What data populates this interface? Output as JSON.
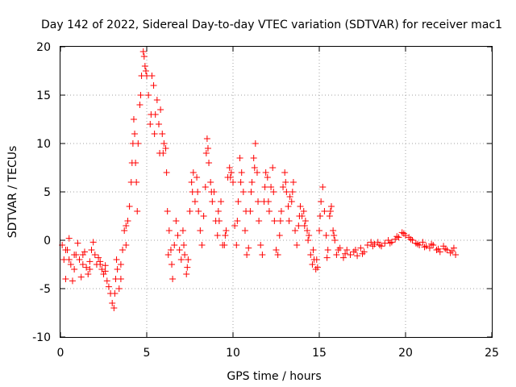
{
  "chart_data": {
    "type": "scatter",
    "title": "Day 142 of 2022, Sidereal Day-to-day VTEC variation (SDTVAR) for receiver mac1",
    "xlabel": "GPS time / hours",
    "ylabel": "SDTVAR / TECUs",
    "xlim": [
      0,
      25
    ],
    "ylim": [
      -10,
      20
    ],
    "xticks": [
      "0",
      "5",
      "10",
      "15",
      "20",
      "25"
    ],
    "yticks": [
      "-10",
      "-5",
      "0",
      "5",
      "10",
      "15",
      "20"
    ],
    "grid": true,
    "marker": "+",
    "series": [
      {
        "name": "SDTVAR",
        "color": "#ff0000",
        "points": [
          [
            0.1,
            -0.5
          ],
          [
            0.2,
            -2.0
          ],
          [
            0.3,
            -4.0
          ],
          [
            0.4,
            -1.0
          ],
          [
            0.5,
            0.2
          ],
          [
            0.6,
            -2.5
          ],
          [
            0.7,
            -4.2
          ],
          [
            0.8,
            -3.0
          ],
          [
            0.9,
            -1.5
          ],
          [
            1.0,
            -0.3
          ],
          [
            1.1,
            -2.0
          ],
          [
            1.2,
            -3.8
          ],
          [
            1.3,
            -2.5
          ],
          [
            1.4,
            -1.2
          ],
          [
            1.5,
            -2.8
          ],
          [
            1.6,
            -3.5
          ],
          [
            1.7,
            -2.2
          ],
          [
            1.8,
            -1.0
          ],
          [
            1.9,
            -0.2
          ],
          [
            2.0,
            -1.5
          ],
          [
            2.1,
            -2.5
          ],
          [
            2.2,
            -1.8
          ],
          [
            2.3,
            -2.2
          ],
          [
            2.4,
            -3.0
          ],
          [
            2.5,
            -3.5
          ],
          [
            2.6,
            -2.6
          ],
          [
            2.7,
            -4.2
          ],
          [
            2.8,
            -4.8
          ],
          [
            2.9,
            -5.5
          ],
          [
            3.0,
            -6.5
          ],
          [
            3.1,
            -7.0
          ],
          [
            3.15,
            -5.5
          ],
          [
            3.2,
            -4.0
          ],
          [
            3.3,
            -3.0
          ],
          [
            3.4,
            -5.0
          ],
          [
            3.5,
            -2.5
          ],
          [
            3.6,
            -1.0
          ],
          [
            3.7,
            1.0
          ],
          [
            3.8,
            -0.5
          ],
          [
            3.9,
            2.0
          ],
          [
            4.0,
            3.5
          ],
          [
            4.1,
            6.0
          ],
          [
            4.2,
            10.0
          ],
          [
            4.25,
            12.5
          ],
          [
            4.3,
            11.0
          ],
          [
            4.35,
            8.0
          ],
          [
            4.4,
            6.0
          ],
          [
            4.5,
            10.0
          ],
          [
            4.6,
            14.0
          ],
          [
            4.7,
            17.0
          ],
          [
            4.8,
            19.5
          ],
          [
            4.85,
            19.0
          ],
          [
            4.9,
            18.0
          ],
          [
            5.0,
            17.0
          ],
          [
            5.1,
            15.0
          ],
          [
            5.2,
            12.0
          ],
          [
            5.3,
            17.0
          ],
          [
            5.4,
            16.0
          ],
          [
            5.5,
            13.0
          ],
          [
            5.6,
            14.5
          ],
          [
            5.7,
            12.0
          ],
          [
            5.8,
            13.5
          ],
          [
            5.9,
            11.0
          ],
          [
            6.0,
            10.0
          ],
          [
            6.1,
            9.5
          ],
          [
            6.15,
            7.0
          ],
          [
            6.2,
            3.0
          ],
          [
            6.3,
            1.0
          ],
          [
            6.4,
            -1.0
          ],
          [
            6.5,
            -4.0
          ],
          [
            6.6,
            -0.5
          ],
          [
            6.7,
            2.0
          ],
          [
            6.8,
            0.5
          ],
          [
            6.9,
            -1.0
          ],
          [
            7.0,
            -2.0
          ],
          [
            7.1,
            1.0
          ],
          [
            7.2,
            -1.5
          ],
          [
            7.3,
            -3.5
          ],
          [
            7.4,
            -2.0
          ],
          [
            7.5,
            3.0
          ],
          [
            7.6,
            6.0
          ],
          [
            7.7,
            7.0
          ],
          [
            7.8,
            4.0
          ],
          [
            7.9,
            6.5
          ],
          [
            8.0,
            3.0
          ],
          [
            8.1,
            1.0
          ],
          [
            8.2,
            -0.5
          ],
          [
            8.3,
            2.5
          ],
          [
            8.4,
            5.5
          ],
          [
            8.5,
            10.5
          ],
          [
            8.55,
            9.5
          ],
          [
            8.6,
            8.0
          ],
          [
            8.7,
            6.0
          ],
          [
            8.8,
            4.0
          ],
          [
            8.9,
            5.0
          ],
          [
            9.0,
            2.0
          ],
          [
            9.1,
            0.5
          ],
          [
            9.2,
            2.0
          ],
          [
            9.3,
            4.0
          ],
          [
            9.4,
            -0.5
          ],
          [
            9.5,
            -0.5
          ],
          [
            9.6,
            1.0
          ],
          [
            9.7,
            6.5
          ],
          [
            9.8,
            7.5
          ],
          [
            9.9,
            7.0
          ],
          [
            10.0,
            6.0
          ],
          [
            10.1,
            1.5
          ],
          [
            10.2,
            -0.5
          ],
          [
            10.3,
            4.0
          ],
          [
            10.4,
            8.5
          ],
          [
            10.5,
            7.0
          ],
          [
            10.6,
            5.0
          ],
          [
            10.7,
            1.0
          ],
          [
            10.8,
            -1.5
          ],
          [
            10.9,
            -0.8
          ],
          [
            11.0,
            3.0
          ],
          [
            11.1,
            6.0
          ],
          [
            11.2,
            8.5
          ],
          [
            11.3,
            10.0
          ],
          [
            11.4,
            7.0
          ],
          [
            11.5,
            2.0
          ],
          [
            11.6,
            -0.5
          ],
          [
            11.7,
            -1.5
          ],
          [
            11.8,
            4.0
          ],
          [
            11.9,
            7.0
          ],
          [
            12.0,
            6.5
          ],
          [
            12.1,
            3.0
          ],
          [
            12.2,
            5.5
          ],
          [
            12.3,
            7.5
          ],
          [
            12.4,
            2.0
          ],
          [
            12.5,
            -1.0
          ],
          [
            12.6,
            -1.5
          ],
          [
            12.7,
            0.5
          ],
          [
            12.8,
            3.0
          ],
          [
            12.9,
            5.5
          ],
          [
            13.0,
            7.0
          ],
          [
            13.1,
            5.0
          ],
          [
            13.2,
            3.5
          ],
          [
            13.3,
            4.5
          ],
          [
            13.4,
            4.0
          ],
          [
            13.5,
            6.0
          ],
          [
            13.6,
            1.0
          ],
          [
            13.7,
            -0.5
          ],
          [
            13.8,
            1.5
          ],
          [
            13.9,
            3.5
          ],
          [
            14.0,
            2.5
          ],
          [
            14.1,
            3.0
          ],
          [
            14.2,
            2.0
          ],
          [
            14.3,
            1.0
          ],
          [
            14.4,
            0.5
          ],
          [
            14.5,
            -1.5
          ],
          [
            14.6,
            -2.5
          ],
          [
            14.7,
            -2.0
          ],
          [
            14.8,
            -3.0
          ],
          [
            14.9,
            -2.8
          ],
          [
            15.0,
            1.0
          ],
          [
            15.1,
            4.0
          ],
          [
            15.2,
            5.5
          ],
          [
            15.3,
            3.0
          ],
          [
            15.4,
            0.5
          ],
          [
            15.5,
            -1.0
          ],
          [
            15.6,
            2.5
          ],
          [
            15.7,
            3.5
          ],
          [
            15.8,
            1.0
          ],
          [
            15.9,
            0.0
          ],
          [
            16.0,
            -1.5
          ],
          [
            16.2,
            -0.8
          ],
          [
            16.4,
            -1.8
          ],
          [
            16.6,
            -1.0
          ],
          [
            16.8,
            -1.5
          ],
          [
            17.0,
            -1.2
          ],
          [
            17.2,
            -1.6
          ],
          [
            17.4,
            -0.8
          ],
          [
            17.6,
            -1.2
          ],
          [
            17.8,
            -0.5
          ],
          [
            18.0,
            -0.2
          ],
          [
            18.2,
            -0.4
          ],
          [
            18.4,
            -0.2
          ],
          [
            18.6,
            -0.6
          ],
          [
            18.8,
            -0.3
          ],
          [
            19.0,
            0.0
          ],
          [
            19.2,
            -0.2
          ],
          [
            19.4,
            0.1
          ],
          [
            19.6,
            0.3
          ],
          [
            19.8,
            0.8
          ],
          [
            20.0,
            0.5
          ],
          [
            20.2,
            0.3
          ],
          [
            20.4,
            0.0
          ],
          [
            20.6,
            -0.3
          ],
          [
            20.8,
            -0.5
          ],
          [
            21.0,
            -0.2
          ],
          [
            21.2,
            -0.6
          ],
          [
            21.4,
            -0.8
          ],
          [
            21.6,
            -0.5
          ],
          [
            21.8,
            -1.0
          ],
          [
            22.0,
            -1.2
          ],
          [
            22.2,
            -0.6
          ],
          [
            22.4,
            -1.0
          ],
          [
            22.6,
            -1.3
          ],
          [
            22.8,
            -0.8
          ],
          [
            22.9,
            -1.5
          ],
          [
            0.3,
            -1.0
          ],
          [
            0.5,
            -2.0
          ],
          [
            0.8,
            -1.5
          ],
          [
            1.3,
            -1.5
          ],
          [
            1.7,
            -3.0
          ],
          [
            2.3,
            -2.5
          ],
          [
            2.6,
            -3.2
          ],
          [
            3.25,
            -2.0
          ],
          [
            3.5,
            -4.0
          ],
          [
            3.8,
            1.5
          ],
          [
            4.15,
            8.0
          ],
          [
            4.45,
            3.0
          ],
          [
            4.65,
            15.0
          ],
          [
            4.95,
            17.5
          ],
          [
            5.25,
            13.0
          ],
          [
            5.45,
            11.0
          ],
          [
            5.75,
            9.0
          ],
          [
            5.95,
            9.0
          ],
          [
            6.25,
            -1.5
          ],
          [
            6.45,
            -2.5
          ],
          [
            7.15,
            -0.5
          ],
          [
            7.35,
            -2.8
          ],
          [
            7.65,
            5.0
          ],
          [
            7.95,
            5.0
          ],
          [
            8.45,
            9.0
          ],
          [
            8.75,
            5.0
          ],
          [
            9.15,
            3.0
          ],
          [
            9.55,
            0.5
          ],
          [
            9.85,
            6.5
          ],
          [
            10.25,
            2.0
          ],
          [
            10.45,
            6.0
          ],
          [
            10.75,
            3.0
          ],
          [
            11.05,
            5.0
          ],
          [
            11.25,
            7.5
          ],
          [
            11.45,
            4.0
          ],
          [
            11.85,
            5.5
          ],
          [
            12.05,
            4.0
          ],
          [
            12.35,
            5.0
          ],
          [
            12.75,
            2.0
          ],
          [
            13.05,
            6.0
          ],
          [
            13.25,
            2.0
          ],
          [
            13.45,
            5.0
          ],
          [
            13.85,
            2.5
          ],
          [
            14.15,
            1.5
          ],
          [
            14.35,
            0.0
          ],
          [
            14.65,
            -1.0
          ],
          [
            14.85,
            -2.0
          ],
          [
            15.05,
            2.5
          ],
          [
            15.45,
            -1.8
          ],
          [
            15.65,
            3.0
          ],
          [
            15.85,
            0.5
          ],
          [
            16.1,
            -1.0
          ],
          [
            16.5,
            -1.4
          ],
          [
            17.1,
            -1.0
          ],
          [
            17.5,
            -1.4
          ],
          [
            18.1,
            -0.6
          ],
          [
            18.5,
            -0.5
          ],
          [
            19.1,
            -0.3
          ],
          [
            19.5,
            0.4
          ],
          [
            19.9,
            0.7
          ],
          [
            20.3,
            0.1
          ],
          [
            20.7,
            -0.4
          ],
          [
            21.1,
            -0.7
          ],
          [
            21.5,
            -0.4
          ],
          [
            21.9,
            -0.9
          ],
          [
            22.3,
            -0.9
          ],
          [
            22.7,
            -1.1
          ]
        ]
      }
    ]
  }
}
